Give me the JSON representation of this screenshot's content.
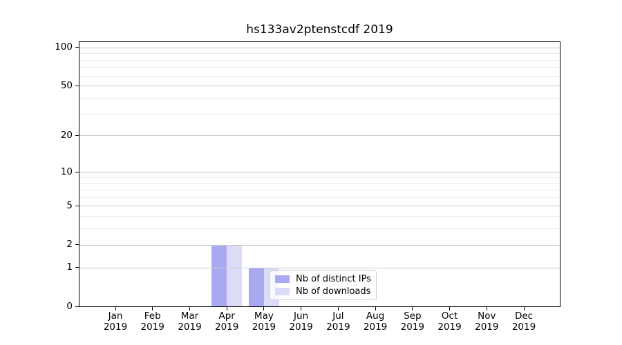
{
  "figure": {
    "title": "hs133av2ptenstcdf 2019"
  },
  "chart_data": {
    "type": "bar",
    "title": "hs133av2ptenstcdf 2019",
    "categories": [
      "Jan",
      "Feb",
      "Mar",
      "Apr",
      "May",
      "Jun",
      "Jul",
      "Aug",
      "Sep",
      "Oct",
      "Nov",
      "Dec"
    ],
    "category_year": "2019",
    "series": [
      {
        "name": "Nb of distinct IPs",
        "color": "#a9a9f1",
        "values": [
          0,
          0,
          0,
          2,
          1,
          0,
          0,
          0,
          0,
          0,
          0,
          0
        ]
      },
      {
        "name": "Nb of downloads",
        "color": "#dcdcf8",
        "values": [
          0,
          0,
          0,
          2,
          1,
          0,
          0,
          0,
          0,
          0,
          0,
          0
        ]
      }
    ],
    "xlabel": "",
    "ylabel": "",
    "yscale": "log1p",
    "y_ticks": [
      0,
      1,
      2,
      5,
      10,
      20,
      50,
      100
    ],
    "y_minor_gridlines": [
      3,
      4,
      6,
      7,
      8,
      9,
      30,
      40,
      60,
      70,
      80,
      90
    ],
    "ylim": [
      0,
      110
    ],
    "grid": true,
    "legend": {
      "position": "lower-center-left",
      "entries": [
        "Nb of distinct IPs",
        "Nb of downloads"
      ]
    }
  },
  "colors": {
    "background": "#ffffff",
    "spine": "#000000",
    "text": "#000000",
    "grid_major": "#c8c8c8",
    "grid_minor": "#ebebeb",
    "legend_border": "#cccccc"
  }
}
